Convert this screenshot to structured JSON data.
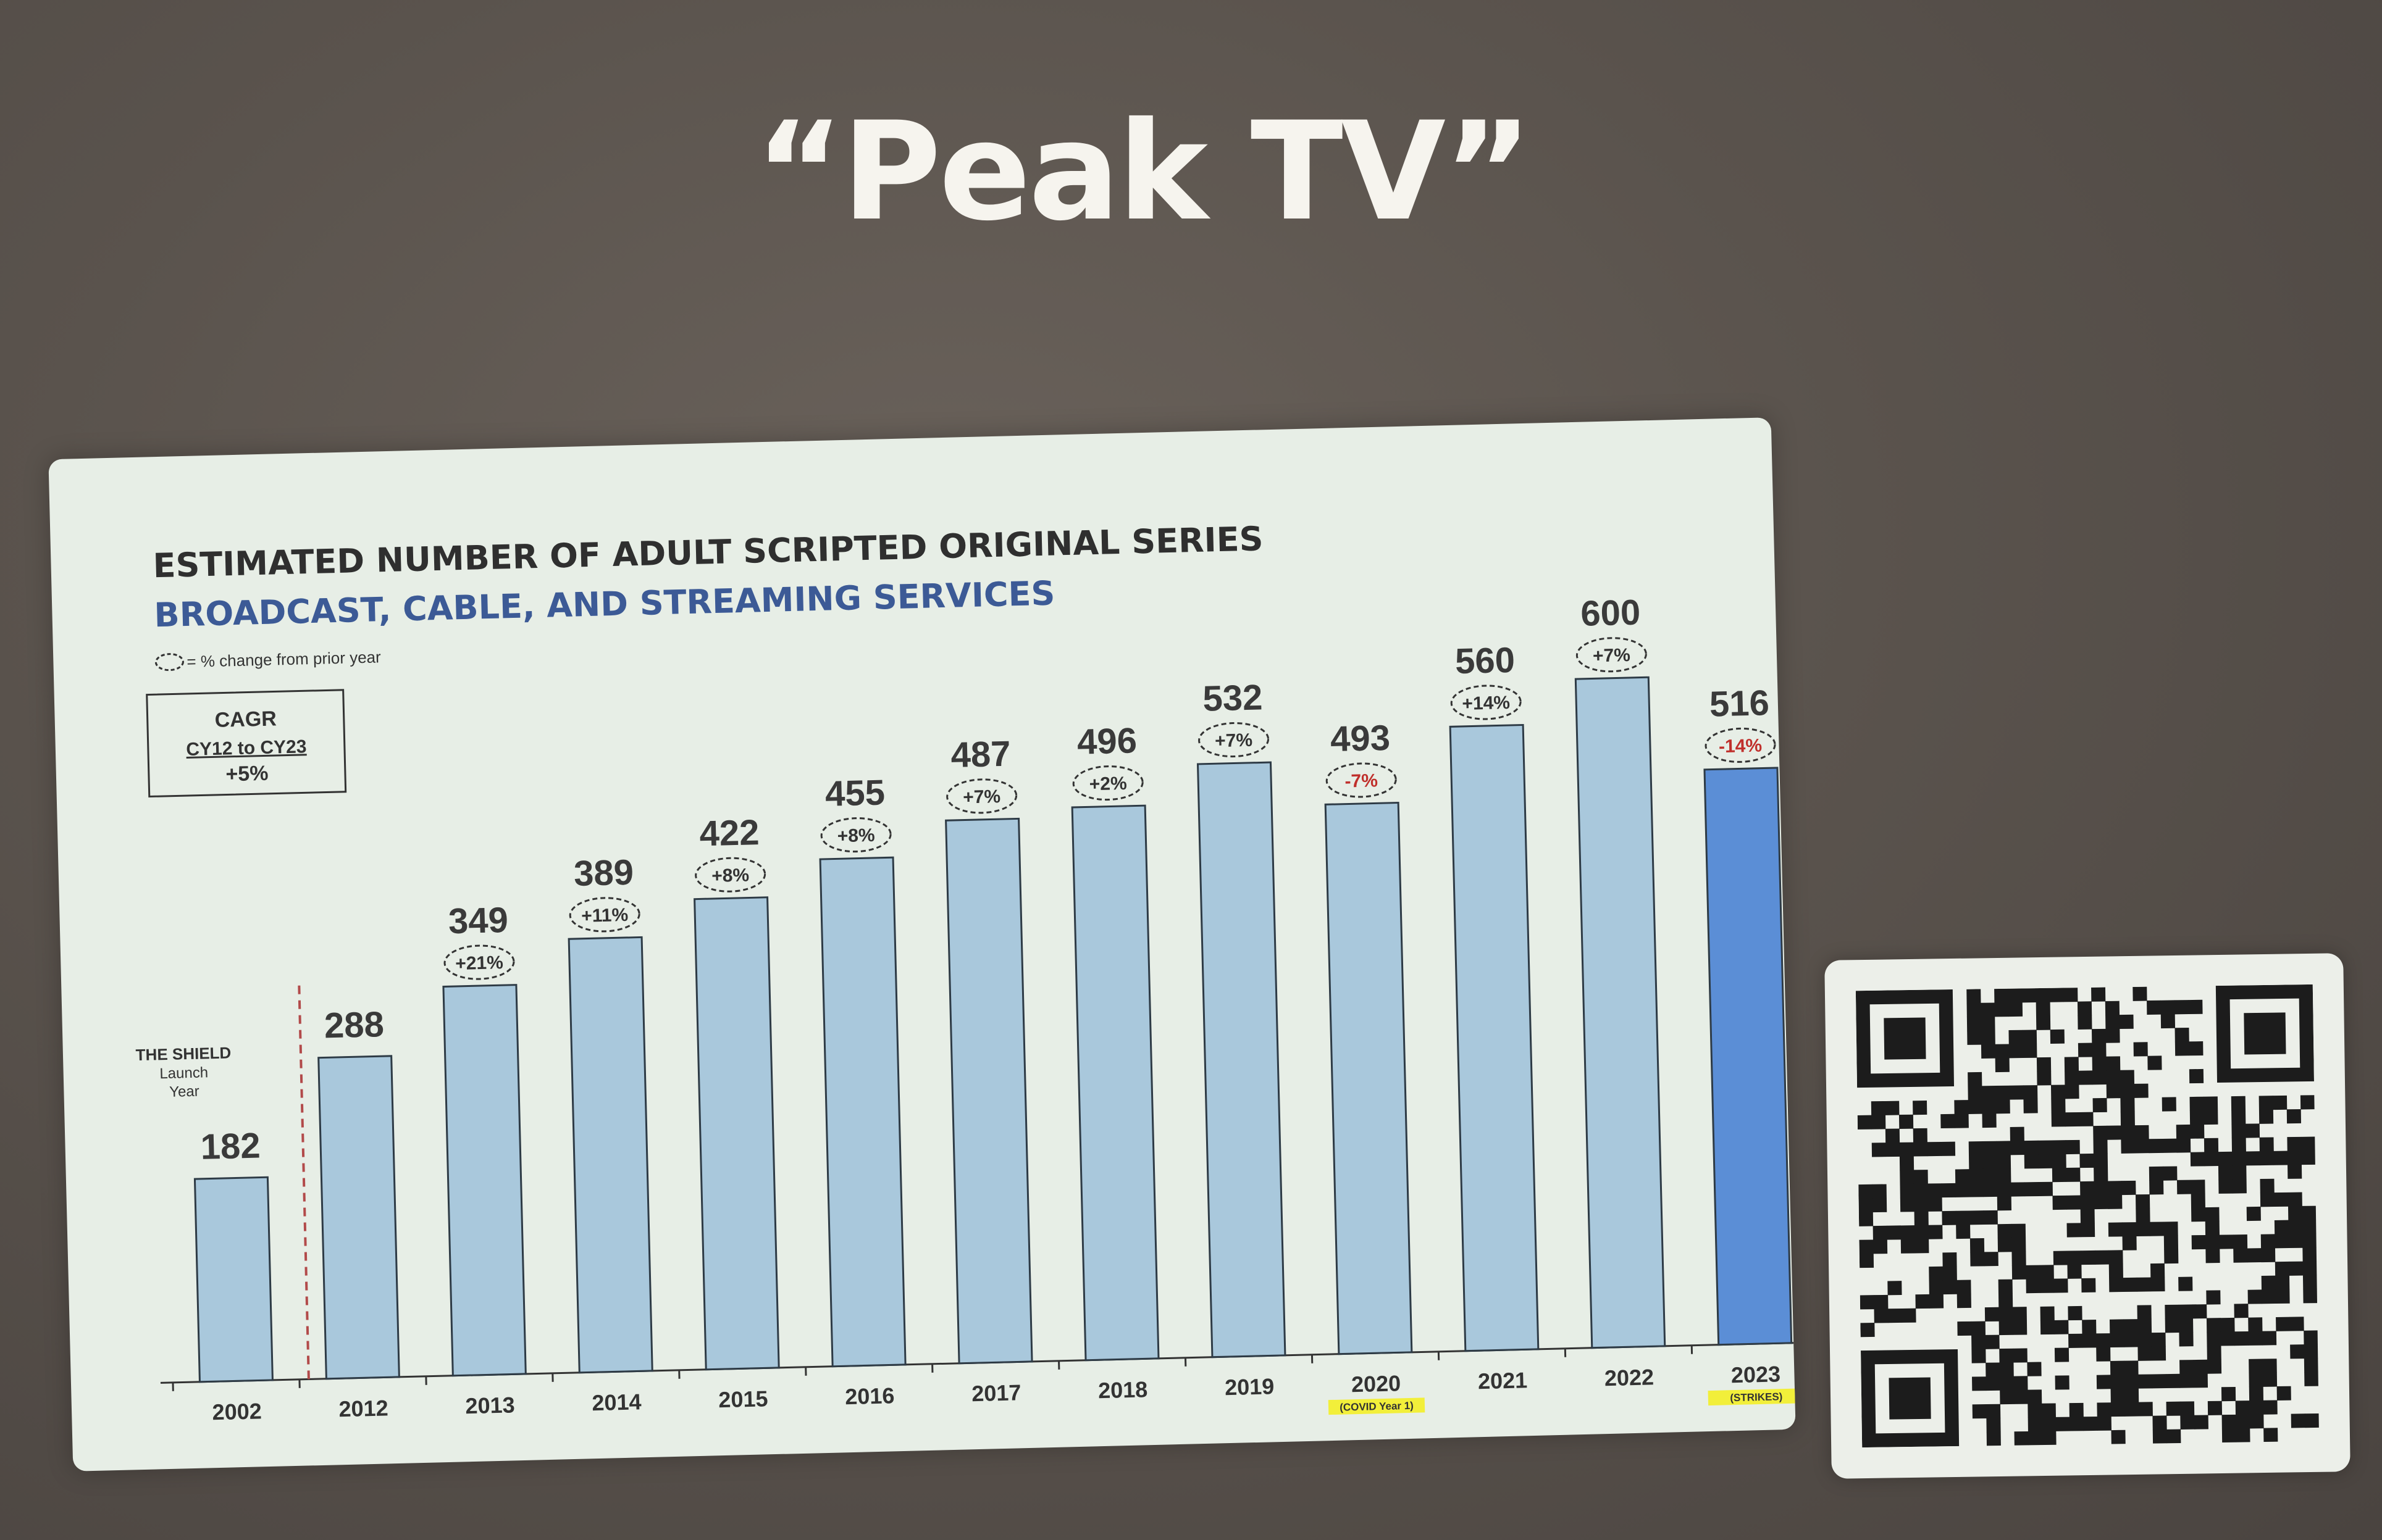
{
  "slide": {
    "title": "“Peak TV”"
  },
  "chart_data": {
    "type": "bar",
    "title": "ESTIMATED NUMBER OF ADULT SCRIPTED ORIGINAL SERIES",
    "subtitle": "BROADCAST, CABLE, AND STREAMING SERVICES",
    "legend_note": "= % change from prior year",
    "cagr_box": {
      "line1": "CAGR",
      "line2": "CY12 to CY23",
      "line3": "+5%"
    },
    "marker": {
      "line1": "THE SHIELD",
      "line2": "Launch",
      "line3": "Year"
    },
    "categories": [
      "2002",
      "2012",
      "2013",
      "2014",
      "2015",
      "2016",
      "2017",
      "2018",
      "2019",
      "2020",
      "2021",
      "2022",
      "2023"
    ],
    "category_notes": [
      "",
      "",
      "",
      "",
      "",
      "",
      "",
      "",
      "",
      "(COVID Year 1)",
      "",
      "",
      "(STRIKES)"
    ],
    "values": [
      182,
      288,
      349,
      389,
      422,
      455,
      487,
      496,
      532,
      493,
      560,
      600,
      516
    ],
    "value_labels": [
      "182",
      "288",
      "349",
      "389",
      "422",
      "455",
      "487",
      "496",
      "532",
      "493",
      "560",
      "600",
      "516"
    ],
    "pct_change": [
      "",
      "",
      "+21%",
      "+11%",
      "+8%",
      "+8%",
      "+7%",
      "+2%",
      "+7%",
      "-7%",
      "+14%",
      "+7%",
      "-14%"
    ],
    "ylim": [
      0,
      620
    ],
    "grid": false,
    "colors": {
      "bar": "#a9c8dc",
      "highlight_bar": "#5b8ed6",
      "title": "#2f2f2f",
      "subtitle": "#3c5a96",
      "negative": "#c0302c",
      "marker_line": "#b24a4a"
    }
  },
  "qr": {
    "icon": "qr-code"
  }
}
